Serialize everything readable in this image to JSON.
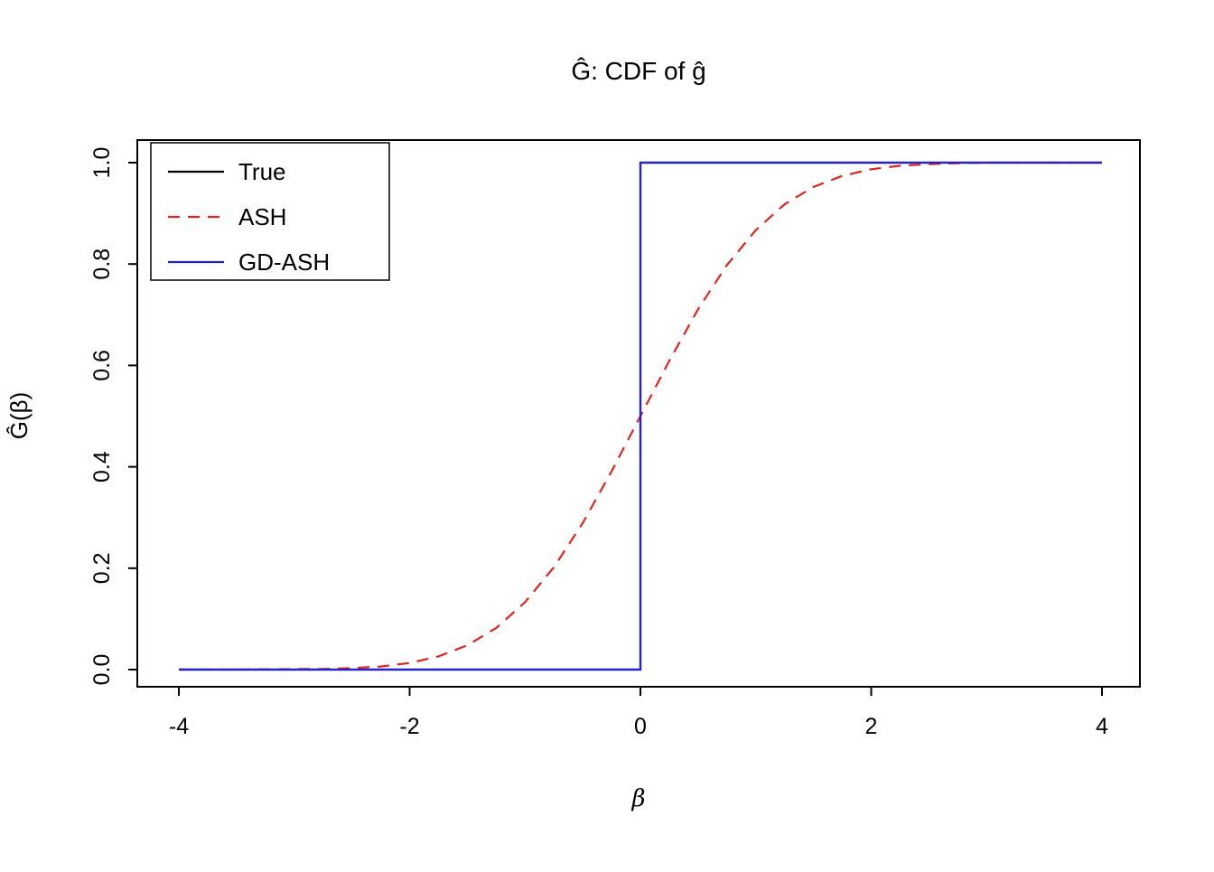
{
  "chart_data": {
    "type": "line",
    "title": "Ĝ: CDF of ĝ",
    "xlabel": "β",
    "ylabel": "Ĝ(β)",
    "xlim": [
      -4,
      4
    ],
    "ylim": [
      0,
      1
    ],
    "grid": false,
    "xticks": {
      "values": [
        -4,
        -2,
        0,
        2,
        4
      ],
      "labels": [
        "-4",
        "-2",
        "0",
        "2",
        "4"
      ]
    },
    "yticks": {
      "values": [
        0.0,
        0.2,
        0.4,
        0.6,
        0.8,
        1.0
      ],
      "labels": [
        "0.0",
        "0.2",
        "0.4",
        "0.6",
        "0.8",
        "1.0"
      ]
    },
    "legend": {
      "position": "top-left",
      "entries": [
        {
          "label": "True",
          "color": "#000000",
          "dash": "solid"
        },
        {
          "label": "ASH",
          "color": "#e0251e",
          "dash": "dashed"
        },
        {
          "label": "GD-ASH",
          "color": "#2222cc",
          "dash": "solid"
        }
      ]
    },
    "series": [
      {
        "name": "True",
        "color": "#000000",
        "dash": "solid",
        "description": "step function CDF: 0 for beta < 0, jumps to 1 at beta = 0",
        "x": [
          -4,
          0,
          0,
          4
        ],
        "y": [
          0,
          0,
          1,
          1
        ]
      },
      {
        "name": "ASH",
        "color": "#e0251e",
        "dash": "dashed",
        "description": "smooth sigmoid CDF estimate",
        "x": [
          -4,
          -3.5,
          -3,
          -2.75,
          -2.5,
          -2.25,
          -2,
          -1.75,
          -1.5,
          -1.25,
          -1,
          -0.75,
          -0.5,
          -0.25,
          0,
          0.25,
          0.5,
          0.75,
          1,
          1.25,
          1.5,
          1.75,
          2,
          2.25,
          2.5,
          2.75,
          3,
          3.5,
          4
        ],
        "y": [
          0,
          0,
          0.001,
          0.001,
          0.003,
          0.006,
          0.013,
          0.026,
          0.048,
          0.082,
          0.133,
          0.202,
          0.289,
          0.391,
          0.5,
          0.609,
          0.711,
          0.798,
          0.867,
          0.918,
          0.952,
          0.974,
          0.987,
          0.994,
          0.997,
          0.999,
          1,
          1,
          1
        ]
      },
      {
        "name": "GD-ASH",
        "color": "#2222cc",
        "dash": "solid",
        "description": "step function CDF overlapping True: 0 for beta < 0, jumps to 1 at beta = 0",
        "x": [
          -4,
          0,
          0,
          4
        ],
        "y": [
          0,
          0,
          1,
          1
        ]
      }
    ]
  }
}
